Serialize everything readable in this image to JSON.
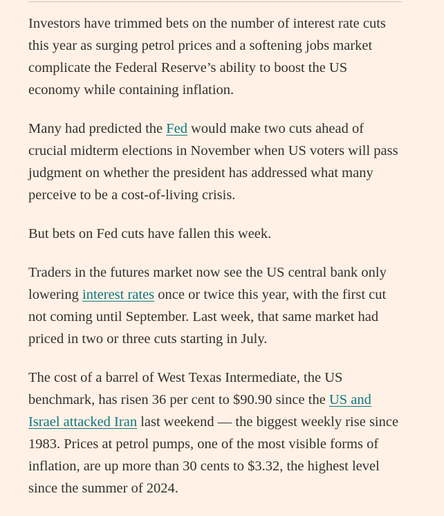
{
  "article": {
    "paragraphs": [
      [
        {
          "text": "Investors have trimmed bets on the number of interest rate cuts this year as surging petrol prices and a softening jobs market complicate the Federal Reserve’s ability to boost the US economy while containing inflation."
        }
      ],
      [
        {
          "text": "Many had predicted the "
        },
        {
          "link": "Fed"
        },
        {
          "text": " would make two cuts ahead of crucial midterm elections in November when US voters will pass judgment on whether the president has addressed what many perceive to be a cost-of-living crisis."
        }
      ],
      [
        {
          "text": "But bets on Fed cuts have fallen this week."
        }
      ],
      [
        {
          "text": "Traders in the futures market now see the US central bank only lowering "
        },
        {
          "link": "interest rates"
        },
        {
          "text": " once or twice this year, with the first cut not coming until September. Last week, that same market had priced in two or three cuts starting in July."
        }
      ],
      [
        {
          "text": "The cost of a barrel of West Texas Intermediate, the US benchmark, has risen 36 per cent to $90.90 since the "
        },
        {
          "link": "US and Israel attacked Iran"
        },
        {
          "text": " last weekend — the biggest weekly rise since 1983. Prices at petrol pumps, one of the most visible forms of inflation, are up more than 30 cents to $3.32, the highest level since the summer of 2024."
        }
      ]
    ]
  }
}
